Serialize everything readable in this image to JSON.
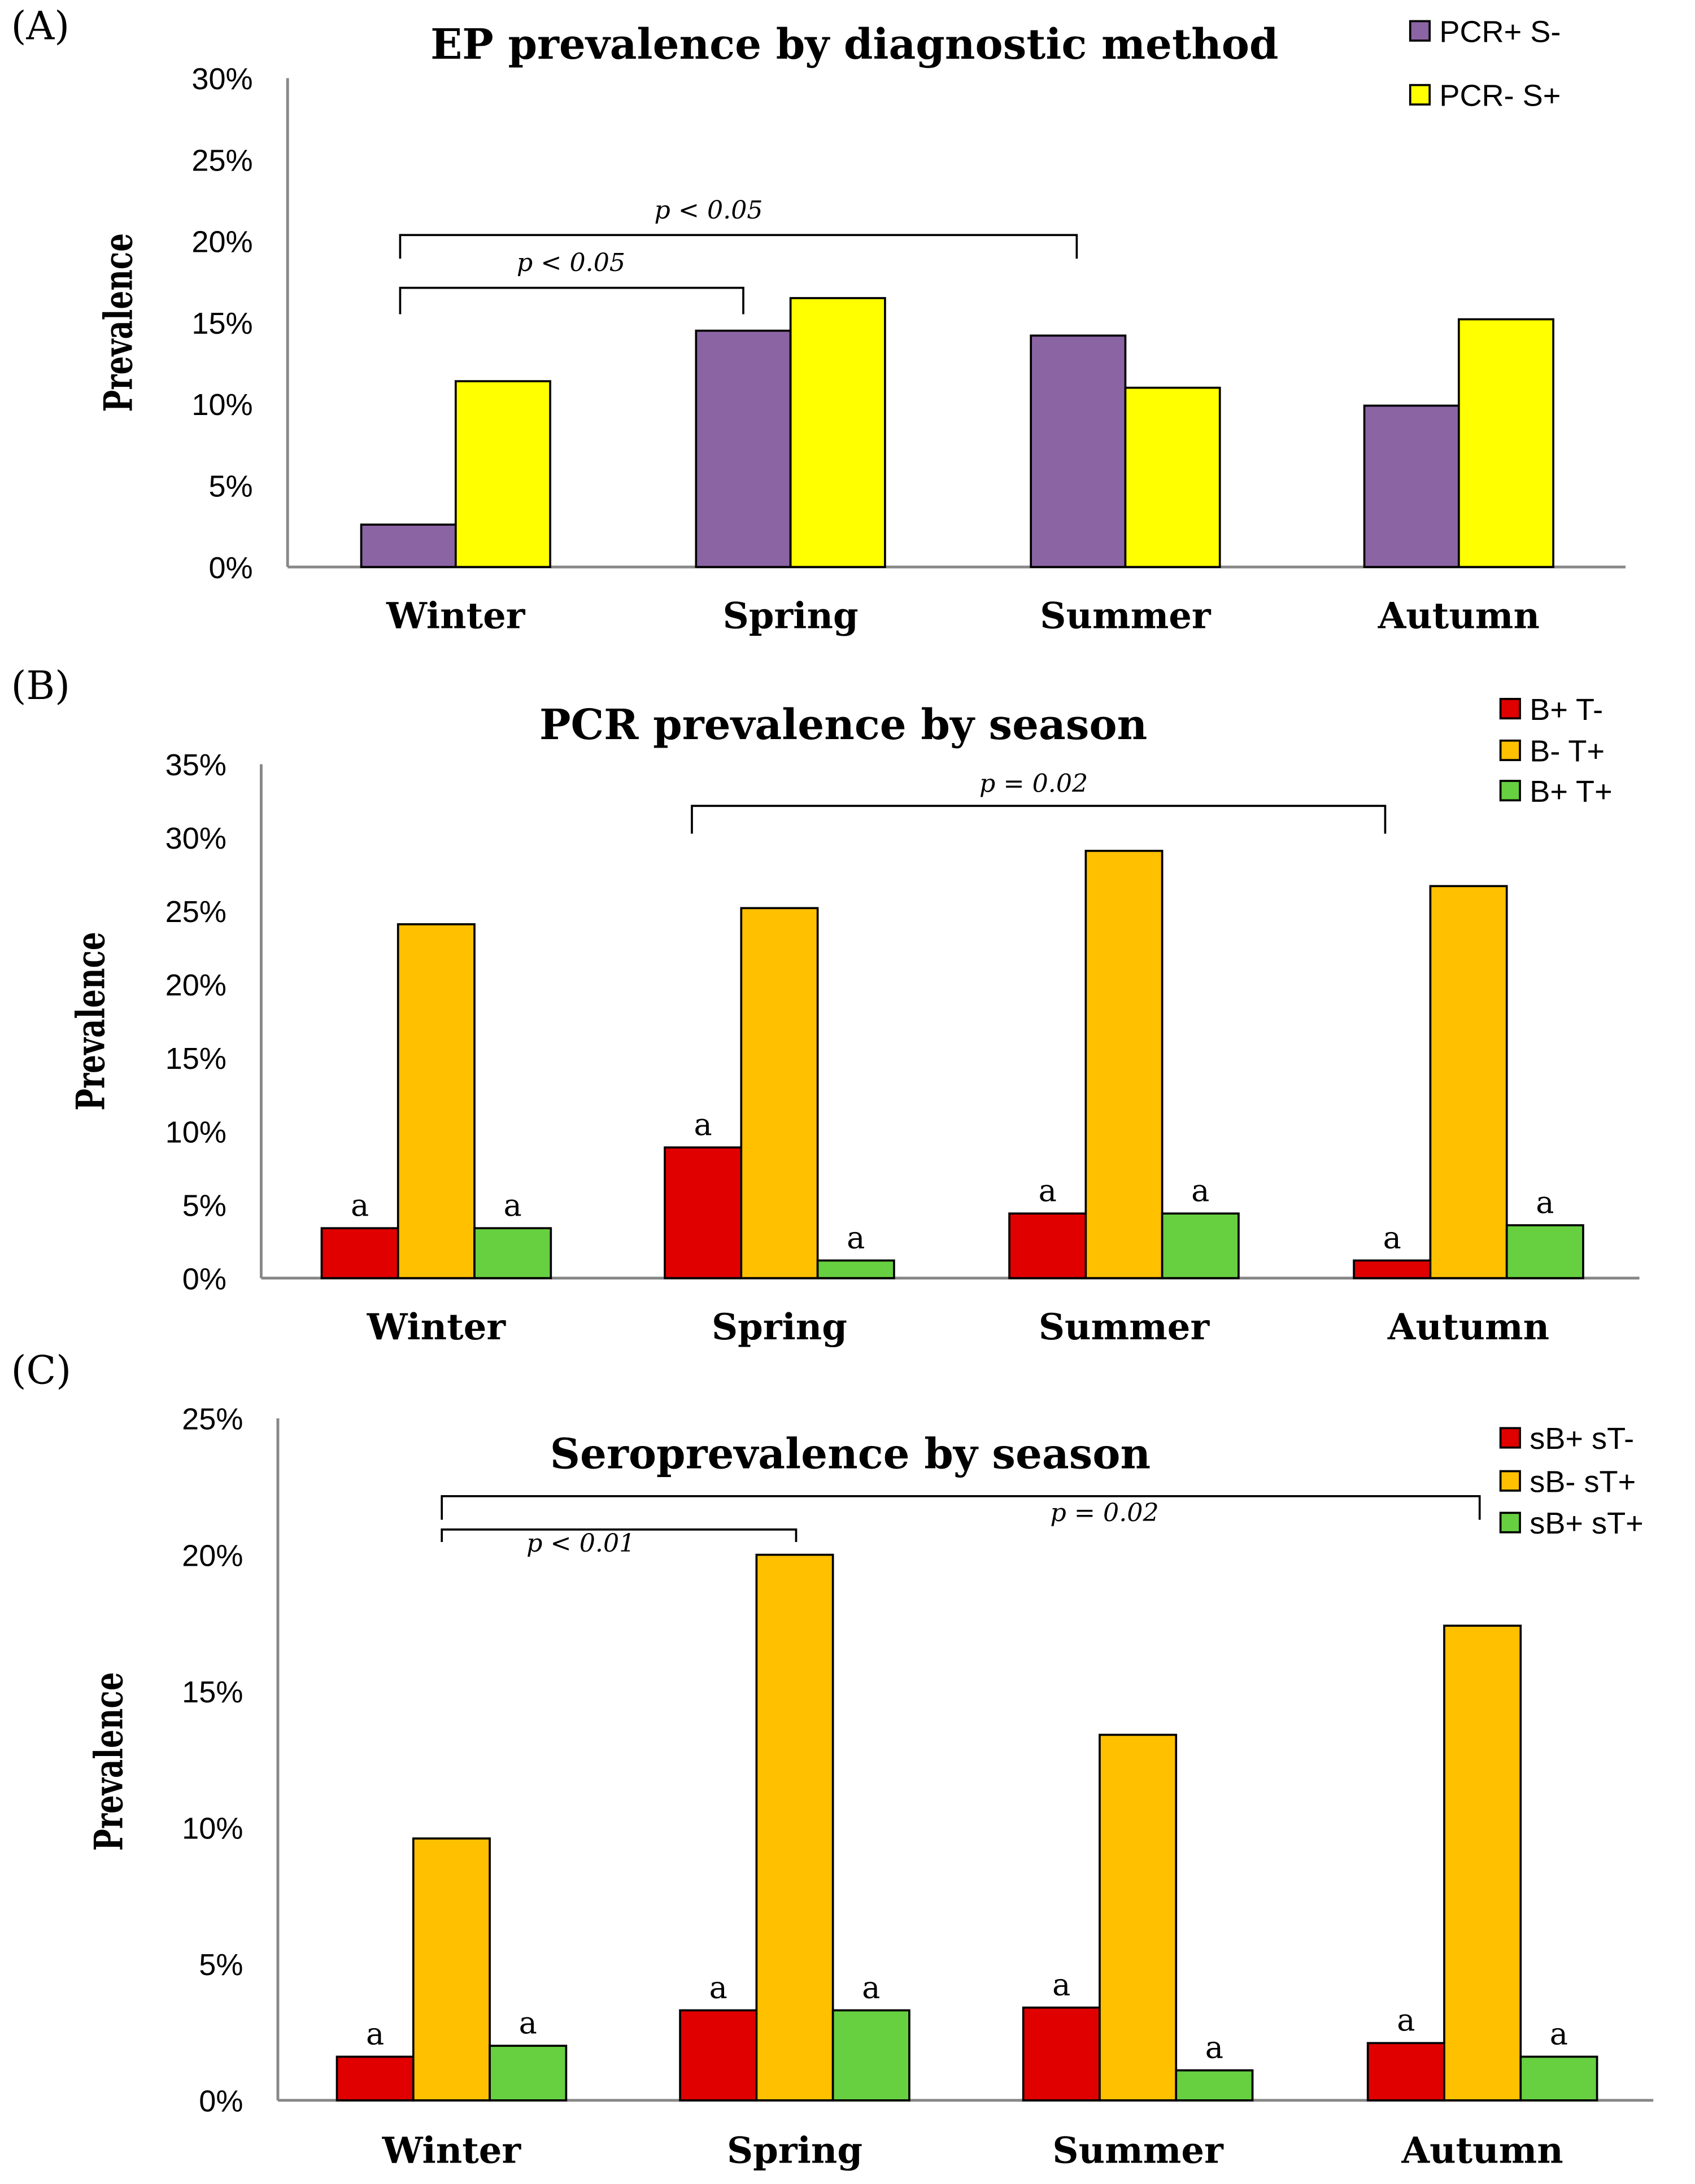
{
  "chart_data": [
    {
      "type": "bar",
      "panel_label": "(A)",
      "title": "EP prevalence by diagnostic method",
      "ylabel": "Prevalence",
      "xlabel": "",
      "ylim": [
        0,
        30
      ],
      "yticks": [
        "0%",
        "5%",
        "10%",
        "15%",
        "20%",
        "25%",
        "30%"
      ],
      "categories": [
        "Winter",
        "Spring",
        "Summer",
        "Autumn"
      ],
      "legend_position": "top-right",
      "series": [
        {
          "name": "PCR+ S-",
          "color": "#8B64A4",
          "values": [
            2.6,
            14.5,
            14.2,
            9.9
          ],
          "labels": null
        },
        {
          "name": "PCR- S+",
          "color": "#FFFF00",
          "values": [
            11.4,
            16.5,
            11.0,
            15.2
          ],
          "labels": null
        }
      ],
      "annotations": [
        {
          "text": "p < 0.05",
          "from": "Winter",
          "to": "Summer"
        },
        {
          "text": "p < 0.05",
          "from": "Winter",
          "to": "Spring"
        }
      ]
    },
    {
      "type": "bar",
      "panel_label": "(B)",
      "title": "PCR prevalence by season",
      "ylabel": "Prevalence",
      "xlabel": "",
      "ylim": [
        0,
        35
      ],
      "yticks": [
        "0%",
        "5%",
        "10%",
        "15%",
        "20%",
        "25%",
        "30%",
        "35%"
      ],
      "categories": [
        "Winter",
        "Spring",
        "Summer",
        "Autumn"
      ],
      "legend_position": "top-right",
      "series": [
        {
          "name": "B+ T-",
          "color": "#E00000",
          "values": [
            3.4,
            8.9,
            4.4,
            1.2
          ],
          "labels": [
            "a",
            "a",
            "a",
            "a"
          ]
        },
        {
          "name": "B- T+",
          "color": "#FFC000",
          "values": [
            24.1,
            25.2,
            29.1,
            26.7
          ],
          "labels": null
        },
        {
          "name": "B+ T+",
          "color": "#66D040",
          "values": [
            3.4,
            1.2,
            4.4,
            3.6
          ],
          "labels": [
            "a",
            "a",
            "a",
            "a"
          ]
        }
      ],
      "annotations": [
        {
          "text": "p = 0.02",
          "from": "Spring",
          "to": "Autumn"
        }
      ]
    },
    {
      "type": "bar",
      "panel_label": "(C)",
      "title": "Seroprevalence by season",
      "ylabel": "Prevalence",
      "xlabel": "",
      "ylim": [
        0,
        25
      ],
      "yticks": [
        "0%",
        "5%",
        "10%",
        "15%",
        "20%",
        "25%"
      ],
      "categories": [
        "Winter",
        "Spring",
        "Summer",
        "Autumn"
      ],
      "legend_position": "top-right",
      "series": [
        {
          "name": "sB+ sT-",
          "color": "#E00000",
          "values": [
            1.6,
            3.3,
            3.4,
            2.1
          ],
          "labels": [
            "a",
            "a",
            "a",
            "a"
          ]
        },
        {
          "name": "sB- sT+",
          "color": "#FFC000",
          "values": [
            9.6,
            20.0,
            13.4,
            17.4
          ],
          "labels": null
        },
        {
          "name": "sB+ sT+",
          "color": "#66D040",
          "values": [
            2.0,
            3.3,
            1.1,
            1.6
          ],
          "labels": [
            "a",
            "a",
            "a",
            "a"
          ]
        }
      ],
      "annotations": [
        {
          "text": "p = 0.02",
          "from": "Winter",
          "to": "Autumn"
        },
        {
          "text": "p < 0.01",
          "from": "Winter",
          "to": "Spring"
        }
      ]
    }
  ]
}
